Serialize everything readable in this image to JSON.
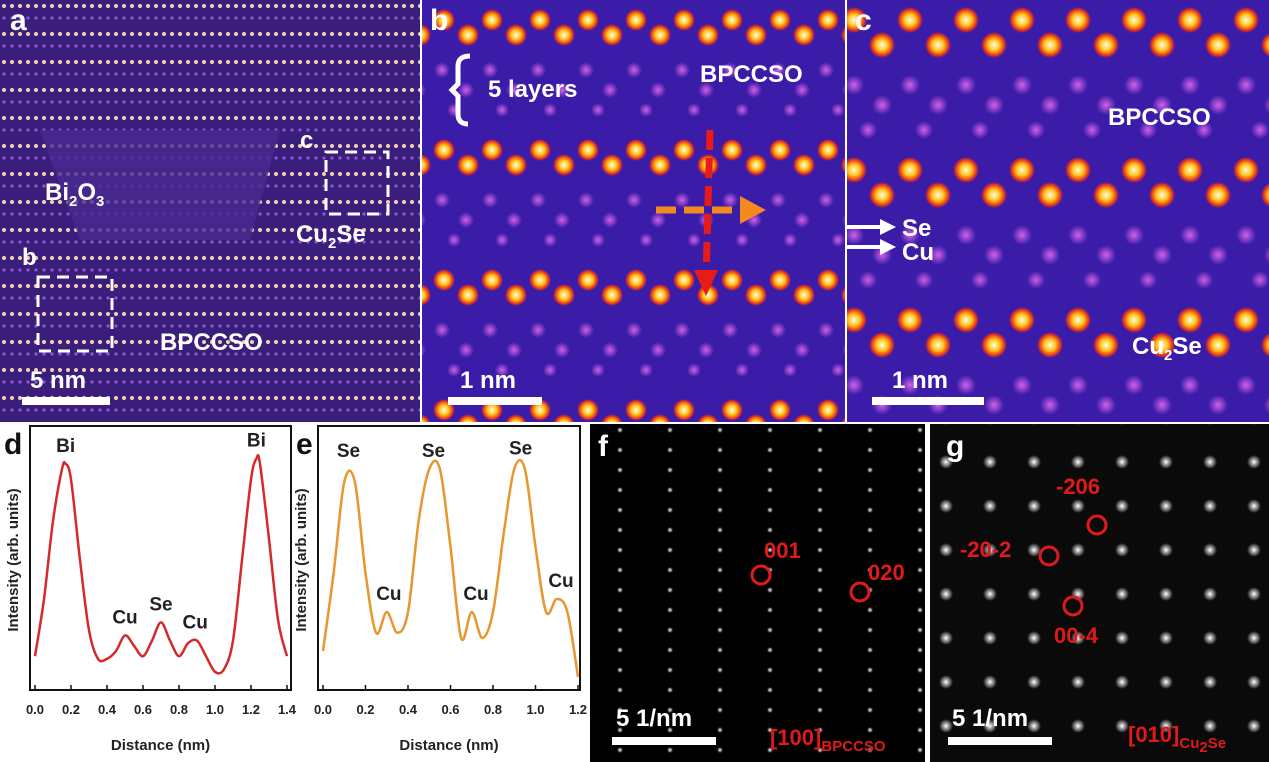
{
  "images": [
    {
      "label": "a",
      "bi2o3": [
        "Bi",
        "2",
        "O",
        "3"
      ],
      "box_c": "c",
      "cu2se": [
        "Cu",
        "2",
        "Se"
      ],
      "box_b": "b",
      "bpccso": "BPCCSO",
      "scale_bar": "5 nm"
    },
    {
      "label": "b",
      "layers": "5 layers",
      "bpccso": "BPCCSO",
      "scale_bar": "1 nm"
    },
    {
      "label": "c",
      "bpccso": "BPCCSO",
      "se": "Se",
      "cu": "Cu",
      "cu2se": [
        "Cu",
        "2",
        "Se"
      ],
      "scale_bar": "1 nm"
    },
    {
      "label": "f",
      "spots": [
        "001",
        "020"
      ],
      "zone": [
        "[100]",
        "BPCCSO"
      ],
      "scale_bar": "5 1/nm"
    },
    {
      "label": "g",
      "spots": [
        "-206",
        "-20-2",
        "00-4"
      ],
      "zone": [
        "[010]",
        "Cu",
        "2",
        "Se"
      ],
      "scale_bar": "5 1/nm"
    }
  ],
  "chart_data": [
    {
      "type": "line",
      "panel_label": "d",
      "xlabel": "Distance (nm)",
      "ylabel": "Intensity (arb. units)",
      "x": [
        0,
        0.05,
        0.1,
        0.15,
        0.17,
        0.2,
        0.25,
        0.3,
        0.35,
        0.4,
        0.45,
        0.5,
        0.55,
        0.6,
        0.65,
        0.7,
        0.75,
        0.8,
        0.85,
        0.9,
        0.95,
        1.0,
        1.05,
        1.1,
        1.15,
        1.2,
        1.23,
        1.25,
        1.3,
        1.35,
        1.4
      ],
      "values": [
        0.13,
        0.35,
        0.65,
        0.85,
        0.87,
        0.81,
        0.5,
        0.23,
        0.12,
        0.12,
        0.15,
        0.21,
        0.17,
        0.13,
        0.19,
        0.26,
        0.19,
        0.13,
        0.18,
        0.19,
        0.13,
        0.07,
        0.08,
        0.19,
        0.5,
        0.81,
        0.89,
        0.87,
        0.58,
        0.27,
        0.13
      ],
      "color": "#d42a2a",
      "xlim": [
        0,
        1.4
      ],
      "ylim": [
        0,
        1
      ],
      "xticks": [
        {
          "value": 0,
          "label": "0.0"
        },
        0.2,
        0.4,
        0.6,
        0.8,
        {
          "value": 1,
          "label": "1.0"
        },
        1.2,
        1.4
      ],
      "annotations": [
        {
          "text": "Bi",
          "x": 0.17,
          "y": 0.87
        },
        {
          "text": "Cu",
          "x": 0.5,
          "y": 0.21
        },
        {
          "text": "Se",
          "x": 0.7,
          "y": 0.26
        },
        {
          "text": "Cu",
          "x": 0.89,
          "y": 0.19
        },
        {
          "text": "Bi",
          "x": 1.23,
          "y": 0.89
        }
      ]
    },
    {
      "type": "line",
      "panel_label": "e",
      "xlabel": "Distance (nm)",
      "ylabel": "Intensity (arb. units)",
      "x": [
        0,
        0.05,
        0.1,
        0.15,
        0.2,
        0.25,
        0.3,
        0.35,
        0.4,
        0.45,
        0.5,
        0.55,
        0.6,
        0.65,
        0.7,
        0.75,
        0.8,
        0.85,
        0.9,
        0.95,
        1.0,
        1.05,
        1.1,
        1.15,
        1.2
      ],
      "values": [
        0.15,
        0.45,
        0.8,
        0.8,
        0.45,
        0.22,
        0.3,
        0.22,
        0.3,
        0.65,
        0.85,
        0.85,
        0.55,
        0.2,
        0.3,
        0.2,
        0.3,
        0.6,
        0.85,
        0.85,
        0.55,
        0.3,
        0.35,
        0.3,
        0.05
      ],
      "color": "#e8962e",
      "xlim": [
        0,
        1.2
      ],
      "ylim": [
        0,
        1
      ],
      "xticks": [
        {
          "value": 0,
          "label": "0.0"
        },
        0.2,
        0.4,
        0.6,
        0.8,
        {
          "value": 1,
          "label": "1.0"
        },
        1.2
      ],
      "annotations": [
        {
          "text": "Se",
          "x": 0.12,
          "y": 0.85
        },
        {
          "text": "Cu",
          "x": 0.31,
          "y": 0.3
        },
        {
          "text": "Se",
          "x": 0.52,
          "y": 0.85
        },
        {
          "text": "Cu",
          "x": 0.72,
          "y": 0.3
        },
        {
          "text": "Se",
          "x": 0.93,
          "y": 0.86
        },
        {
          "text": "Cu",
          "x": 1.12,
          "y": 0.35
        }
      ]
    }
  ]
}
